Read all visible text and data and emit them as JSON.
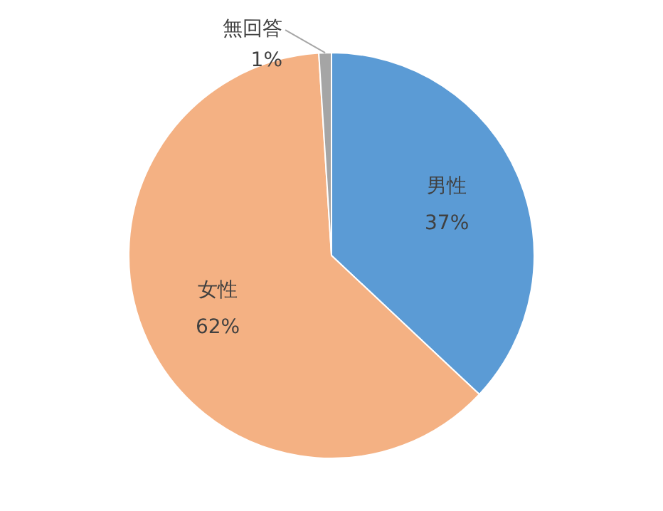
{
  "chart_data": {
    "type": "pie",
    "categories": [
      "男性",
      "女性",
      "無回答"
    ],
    "values": [
      37,
      62,
      1
    ],
    "colors": [
      "#5b9bd5",
      "#f4b183",
      "#a5a5a5"
    ],
    "value_labels": [
      "37%",
      "62%",
      "1%"
    ],
    "legend": false
  }
}
